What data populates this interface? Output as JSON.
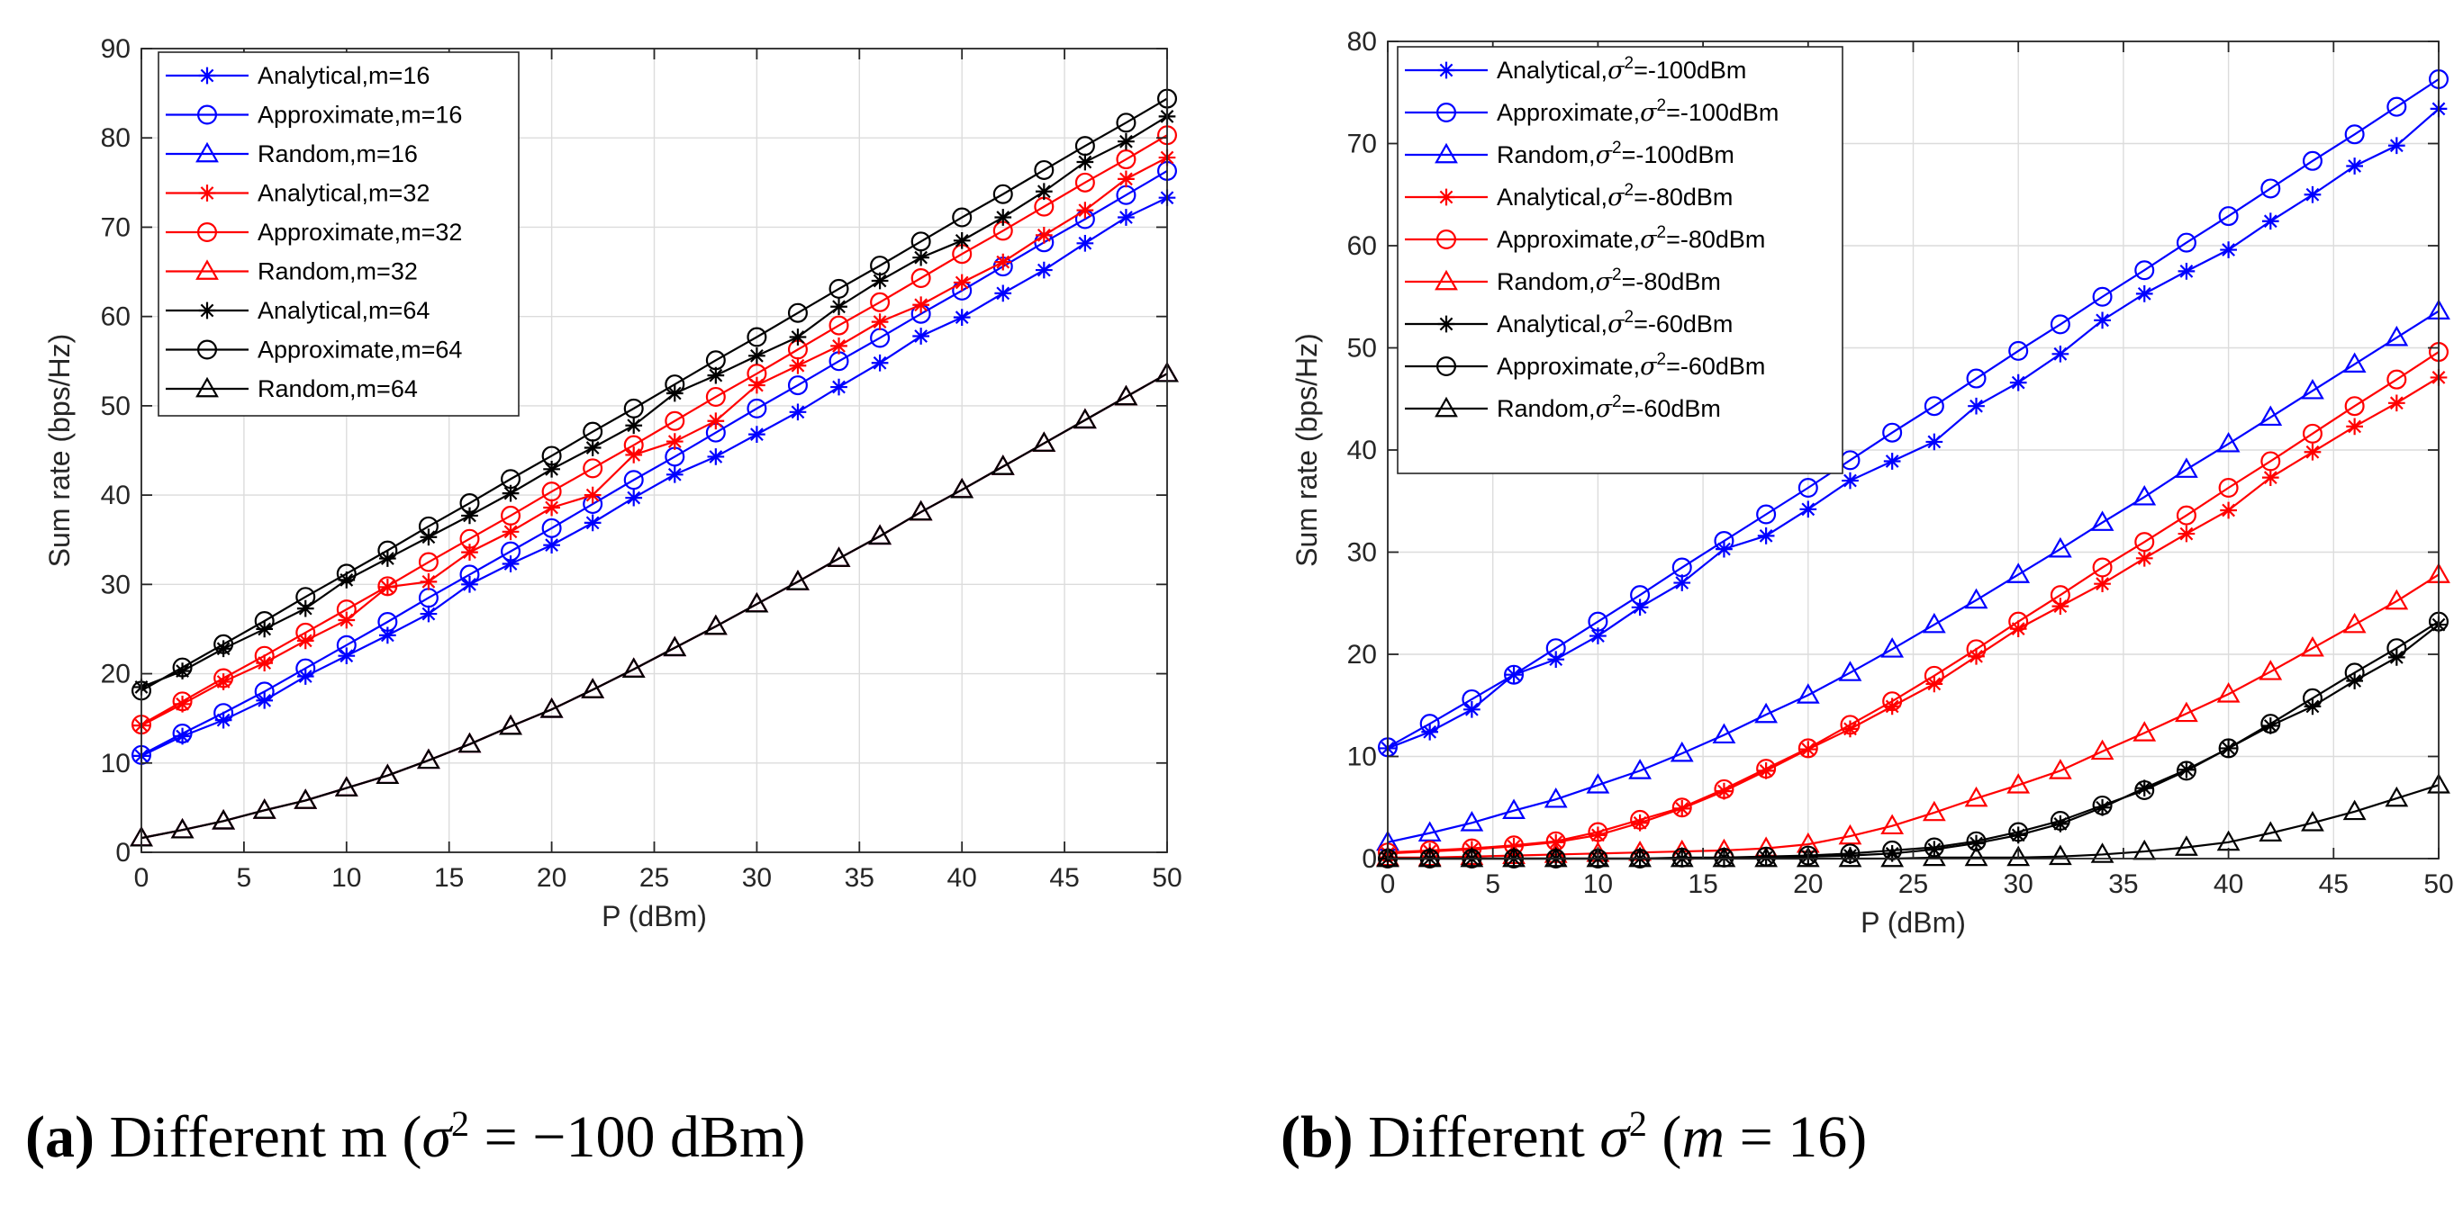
{
  "chart_data": [
    {
      "type": "line",
      "id": "a",
      "xlabel": "P (dBm)",
      "ylabel": "Sum rate (bps/Hz)",
      "xlim": [
        0,
        50
      ],
      "ylim": [
        0,
        90
      ],
      "xticks": [
        0,
        5,
        10,
        15,
        20,
        25,
        30,
        35,
        40,
        45,
        50
      ],
      "yticks": [
        0,
        10,
        20,
        30,
        40,
        50,
        60,
        70,
        80,
        90
      ],
      "grid": true,
      "legend_position": "top-left",
      "x": [
        0,
        2,
        4,
        6,
        8,
        10,
        12,
        14,
        16,
        18,
        20,
        22,
        24,
        26,
        28,
        30,
        32,
        34,
        36,
        38,
        40,
        42,
        44,
        46,
        48,
        50
      ],
      "series": [
        {
          "name": "Analytical,m=16",
          "color": "#0000ff",
          "marker": "star",
          "values": [
            10.8,
            13.0,
            14.8,
            17.0,
            19.7,
            22.0,
            24.3,
            26.7,
            30.0,
            32.3,
            34.4,
            36.9,
            39.7,
            42.3,
            44.3,
            46.8,
            49.3,
            52.1,
            54.8,
            57.8,
            59.9,
            62.6,
            65.2,
            68.2,
            71.1,
            73.3
          ]
        },
        {
          "name": "Approximate,m=16",
          "color": "#0000ff",
          "marker": "circle",
          "values": [
            10.9,
            13.3,
            15.6,
            18.0,
            20.6,
            23.2,
            25.8,
            28.5,
            31.1,
            33.7,
            36.3,
            39.0,
            41.7,
            44.3,
            47.0,
            49.7,
            52.3,
            55.0,
            57.6,
            60.3,
            62.9,
            65.6,
            68.3,
            70.9,
            73.6,
            76.3
          ]
        },
        {
          "name": "Random,m=16",
          "color": "#0000ff",
          "marker": "triangle",
          "values": [
            1.6,
            2.5,
            3.5,
            4.7,
            5.8,
            7.2,
            8.6,
            10.3,
            12.1,
            14.1,
            16.0,
            18.2,
            20.5,
            22.9,
            25.3,
            27.8,
            30.3,
            32.9,
            35.4,
            38.1,
            40.6,
            43.2,
            45.8,
            48.4,
            51.0,
            53.6
          ]
        },
        {
          "name": "Analytical,m=32",
          "color": "#ff0000",
          "marker": "star",
          "values": [
            14.2,
            16.6,
            19.1,
            21.2,
            23.7,
            26.0,
            29.7,
            30.3,
            33.6,
            35.9,
            38.6,
            40.0,
            44.5,
            46.0,
            48.3,
            52.3,
            54.5,
            56.7,
            59.4,
            61.3,
            63.8,
            66.1,
            69.1,
            71.9,
            75.4,
            77.8
          ]
        },
        {
          "name": "Approximate,m=32",
          "color": "#ff0000",
          "marker": "circle",
          "values": [
            14.3,
            16.9,
            19.5,
            22.0,
            24.6,
            27.2,
            29.8,
            32.5,
            35.1,
            37.7,
            40.4,
            43.0,
            45.6,
            48.3,
            51.0,
            53.6,
            56.3,
            59.0,
            61.6,
            64.3,
            67.0,
            69.6,
            72.3,
            75.0,
            77.6,
            80.3
          ]
        },
        {
          "name": "Random,m=32",
          "color": "#ff0000",
          "marker": "triangle",
          "values": [
            1.6,
            2.5,
            3.5,
            4.7,
            5.8,
            7.2,
            8.6,
            10.3,
            12.1,
            14.1,
            16.0,
            18.2,
            20.5,
            22.9,
            25.3,
            27.8,
            30.3,
            32.9,
            35.4,
            38.1,
            40.6,
            43.2,
            45.8,
            48.4,
            51.0,
            53.6
          ]
        },
        {
          "name": "Analytical,m=64",
          "color": "#000000",
          "marker": "star",
          "values": [
            18.5,
            20.3,
            22.8,
            25.0,
            27.3,
            30.5,
            32.9,
            35.3,
            37.7,
            40.2,
            42.9,
            45.3,
            47.8,
            51.4,
            53.4,
            55.6,
            57.7,
            61.1,
            64.0,
            66.6,
            68.5,
            71.1,
            74.0,
            77.3,
            79.6,
            82.4
          ]
        },
        {
          "name": "Approximate,m=64",
          "color": "#000000",
          "marker": "circle",
          "values": [
            18.1,
            20.7,
            23.3,
            25.9,
            28.6,
            31.2,
            33.8,
            36.5,
            39.1,
            41.8,
            44.4,
            47.1,
            49.7,
            52.4,
            55.1,
            57.7,
            60.4,
            63.1,
            65.7,
            68.4,
            71.1,
            73.7,
            76.4,
            79.1,
            81.7,
            84.4
          ]
        },
        {
          "name": "Random,m=64",
          "color": "#000000",
          "marker": "triangle",
          "values": [
            1.6,
            2.5,
            3.5,
            4.7,
            5.8,
            7.2,
            8.6,
            10.3,
            12.1,
            14.1,
            16.0,
            18.2,
            20.5,
            22.9,
            25.3,
            27.8,
            30.3,
            32.9,
            35.4,
            38.1,
            40.6,
            43.2,
            45.8,
            48.4,
            51.0,
            53.6
          ]
        }
      ]
    },
    {
      "type": "line",
      "id": "b",
      "xlabel": "P (dBm)",
      "ylabel": "Sum rate (bps/Hz)",
      "xlim": [
        0,
        50
      ],
      "ylim": [
        0,
        80
      ],
      "xticks": [
        0,
        5,
        10,
        15,
        20,
        25,
        30,
        35,
        40,
        45,
        50
      ],
      "yticks": [
        0,
        10,
        20,
        30,
        40,
        50,
        60,
        70,
        80
      ],
      "grid": true,
      "legend_position": "top-left",
      "x": [
        0,
        2,
        4,
        6,
        8,
        10,
        12,
        14,
        16,
        18,
        20,
        22,
        24,
        26,
        28,
        30,
        32,
        34,
        36,
        38,
        40,
        42,
        44,
        46,
        48,
        50
      ],
      "series": [
        {
          "name": "Analytical,σ2=-100dBm",
          "prefix": "Analytical,",
          "suffix": "=-100dBm",
          "color": "#0000ff",
          "marker": "star",
          "values": [
            10.8,
            12.4,
            14.6,
            18.0,
            19.5,
            21.8,
            24.6,
            27.0,
            30.3,
            31.6,
            34.2,
            37.0,
            38.9,
            40.8,
            44.3,
            46.6,
            49.4,
            52.7,
            55.3,
            57.5,
            59.6,
            62.4,
            65.0,
            67.8,
            69.8,
            73.4
          ]
        },
        {
          "name": "Approximate,σ2=-100dBm",
          "prefix": "Approximate,",
          "suffix": "=-100dBm",
          "color": "#0000ff",
          "marker": "circle",
          "values": [
            10.9,
            13.2,
            15.6,
            18.0,
            20.6,
            23.2,
            25.8,
            28.5,
            31.1,
            33.7,
            36.3,
            39.0,
            41.7,
            44.3,
            47.0,
            49.7,
            52.3,
            55.0,
            57.6,
            60.3,
            62.9,
            65.6,
            68.3,
            70.9,
            73.6,
            76.3
          ]
        },
        {
          "name": "Random,σ2=-100dBm",
          "prefix": "Random,",
          "suffix": "=-100dBm",
          "color": "#0000ff",
          "marker": "triangle",
          "values": [
            1.6,
            2.5,
            3.5,
            4.7,
            5.8,
            7.2,
            8.6,
            10.3,
            12.1,
            14.1,
            16.0,
            18.2,
            20.5,
            22.9,
            25.3,
            27.8,
            30.3,
            32.9,
            35.4,
            38.1,
            40.6,
            43.2,
            45.8,
            48.4,
            51.0,
            53.6
          ]
        },
        {
          "name": "Analytical,σ2=-80dBm",
          "prefix": "Analytical,",
          "suffix": "=-80dBm",
          "color": "#ff0000",
          "marker": "star",
          "values": [
            0.5,
            0.7,
            0.9,
            1.2,
            1.6,
            2.3,
            3.5,
            4.9,
            6.6,
            8.6,
            10.7,
            12.7,
            14.9,
            17.1,
            19.8,
            22.5,
            24.7,
            26.9,
            29.4,
            31.8,
            34.1,
            37.3,
            39.8,
            42.3,
            44.6,
            47.1
          ]
        },
        {
          "name": "Approximate,σ2=-80dBm",
          "prefix": "Approximate,",
          "suffix": "=-80dBm",
          "color": "#ff0000",
          "marker": "circle",
          "values": [
            0.6,
            0.8,
            1.0,
            1.3,
            1.7,
            2.6,
            3.8,
            5.0,
            6.8,
            8.8,
            10.8,
            13.1,
            15.4,
            17.9,
            20.5,
            23.2,
            25.8,
            28.5,
            31.0,
            33.6,
            36.3,
            38.9,
            41.6,
            44.3,
            46.9,
            49.6
          ]
        },
        {
          "name": "Random,σ2=-80dBm",
          "prefix": "Random,",
          "suffix": "=-80dBm",
          "color": "#ff0000",
          "marker": "triangle",
          "values": [
            0.1,
            0.1,
            0.2,
            0.3,
            0.4,
            0.5,
            0.6,
            0.7,
            0.8,
            1.0,
            1.4,
            2.2,
            3.2,
            4.5,
            5.9,
            7.2,
            8.6,
            10.5,
            12.3,
            14.2,
            16.1,
            18.3,
            20.6,
            22.9,
            25.2,
            27.8
          ]
        },
        {
          "name": "Analytical,σ2=-60dBm",
          "prefix": "Analytical,",
          "suffix": "=-60dBm",
          "color": "#000000",
          "marker": "star",
          "values": [
            0.0,
            0.0,
            0.0,
            0.0,
            0.0,
            0.0,
            0.0,
            0.0,
            0.1,
            0.1,
            0.2,
            0.3,
            0.5,
            0.9,
            1.5,
            2.3,
            3.4,
            5.0,
            6.9,
            8.7,
            10.8,
            13.0,
            14.9,
            17.4,
            19.7,
            22.9
          ]
        },
        {
          "name": "Approximate,σ2=-60dBm",
          "prefix": "Approximate,",
          "suffix": "=-60dBm",
          "color": "#000000",
          "marker": "circle",
          "values": [
            0.0,
            0.0,
            0.0,
            0.0,
            0.0,
            0.0,
            0.0,
            0.1,
            0.1,
            0.2,
            0.3,
            0.5,
            0.8,
            1.1,
            1.7,
            2.6,
            3.7,
            5.2,
            6.7,
            8.6,
            10.8,
            13.2,
            15.7,
            18.2,
            20.6,
            23.2
          ]
        },
        {
          "name": "Random,σ2=-60dBm",
          "prefix": "Random,",
          "suffix": "=-60dBm",
          "color": "#000000",
          "marker": "triangle",
          "values": [
            0.0,
            0.0,
            0.0,
            0.0,
            0.0,
            0.0,
            0.0,
            0.0,
            0.0,
            0.0,
            0.0,
            0.0,
            0.0,
            0.1,
            0.1,
            0.1,
            0.2,
            0.4,
            0.7,
            1.1,
            1.6,
            2.5,
            3.5,
            4.6,
            5.9,
            7.2
          ]
        }
      ]
    }
  ],
  "captions": {
    "a": {
      "label": "(a)",
      "text": " Different m (σ2 = −100 dBm)",
      "pre": " Different m (",
      "sym": "σ",
      "sup": "2",
      "post": " = −100 dBm)"
    },
    "b": {
      "label": "(b)",
      "text": " Different σ2 (m = 16)",
      "pre": " Different ",
      "sym": "σ",
      "sup": "2",
      "post1": " (",
      "var": "m",
      "post2": " = 16)"
    }
  }
}
